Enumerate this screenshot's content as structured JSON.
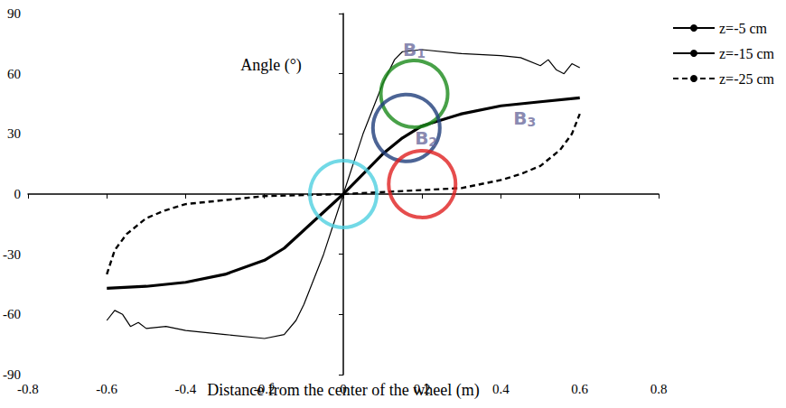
{
  "chart_data": {
    "type": "line",
    "xlabel": "Distance from the center of the wheel (m)",
    "ylabel": "Angle (°)",
    "xlim": [
      -0.8,
      0.8
    ],
    "xticks": [
      -0.8,
      -0.6,
      -0.4,
      -0.2,
      0,
      0.2,
      0.4,
      0.6,
      0.8
    ],
    "ylim": [
      -90,
      90
    ],
    "yticks": [
      -90,
      -60,
      -30,
      0,
      30,
      60,
      90
    ],
    "grid": false,
    "legend": "upper right",
    "series": [
      {
        "name": "z=-5 cm",
        "color": "#000000",
        "line_style": "solid",
        "x": [
          -0.6,
          -0.58,
          -0.56,
          -0.54,
          -0.52,
          -0.5,
          -0.45,
          -0.4,
          -0.3,
          -0.2,
          -0.15,
          -0.12,
          -0.1,
          -0.05,
          0,
          0.05,
          0.1,
          0.13,
          0.15,
          0.2,
          0.3,
          0.4,
          0.45,
          0.5,
          0.52,
          0.54,
          0.56,
          0.58,
          0.6
        ],
        "values": [
          -63,
          -58,
          -60,
          -66,
          -64,
          -67,
          -66,
          -68,
          -70,
          -72,
          -70,
          -63,
          -55,
          -30,
          0,
          30,
          55,
          67,
          71,
          72,
          70,
          69,
          68,
          64,
          67,
          62,
          60,
          65,
          63
        ]
      },
      {
        "name": "z=-15 cm",
        "color": "#000000",
        "line_style": "thick",
        "x": [
          -0.6,
          -0.5,
          -0.4,
          -0.3,
          -0.2,
          -0.15,
          -0.1,
          -0.05,
          0,
          0.05,
          0.1,
          0.15,
          0.2,
          0.3,
          0.4,
          0.5,
          0.6
        ],
        "values": [
          -47,
          -46,
          -44,
          -40,
          -33,
          -27,
          -18,
          -9,
          0,
          10,
          20,
          28,
          34,
          40,
          44,
          46,
          48
        ]
      },
      {
        "name": "z=-25 cm",
        "color": "#000000",
        "line_style": "dashed",
        "x": [
          -0.6,
          -0.58,
          -0.55,
          -0.5,
          -0.45,
          -0.4,
          -0.3,
          -0.2,
          0,
          0.2,
          0.3,
          0.4,
          0.45,
          0.5,
          0.55,
          0.58,
          0.6
        ],
        "values": [
          -40,
          -28,
          -20,
          -12,
          -8,
          -5,
          -3,
          -1,
          0,
          2,
          3,
          7,
          10,
          14,
          22,
          30,
          40
        ]
      }
    ],
    "annotations": {
      "circles": [
        {
          "x": 0.18,
          "y": 50,
          "color": "#1a8a1a"
        },
        {
          "x": 0.16,
          "y": 33,
          "color": "#1f3d7a"
        },
        {
          "x": 0.2,
          "y": 5,
          "color": "#e02020"
        },
        {
          "x": 0,
          "y": 0,
          "color": "#4fd0e0"
        }
      ],
      "labels": [
        {
          "text": "B1",
          "x": 0.18,
          "y": 72
        },
        {
          "text": "B2",
          "x": 0.21,
          "y": 28
        },
        {
          "text": "B3",
          "x": 0.46,
          "y": 38
        }
      ]
    }
  }
}
